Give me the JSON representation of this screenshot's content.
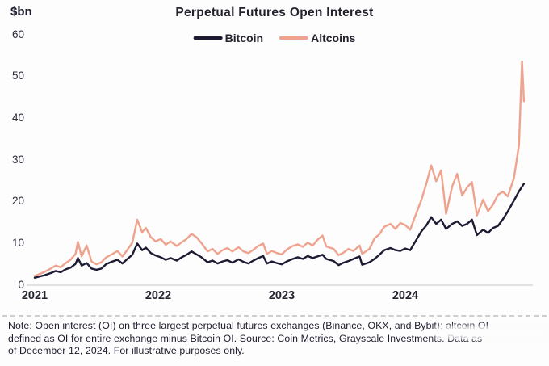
{
  "panel": {
    "background": "#fdfdfd"
  },
  "chart_data": {
    "type": "line",
    "title": "Perpetual Futures Open Interest",
    "unit_label": "$bn",
    "xlabel": "",
    "ylabel": "",
    "ylim": [
      0,
      60
    ],
    "yticks": [
      0,
      10,
      20,
      30,
      40,
      50,
      60
    ],
    "xticks": [
      "2021",
      "2022",
      "2023",
      "2024"
    ],
    "xlim": [
      2021.0,
      2024.96
    ],
    "grid": false,
    "legend_position": "top-center",
    "axis_line_color": "#d9d9d9",
    "series": [
      {
        "name": "Bitcoin",
        "color": "#1c1b33",
        "points": [
          [
            2021.0,
            1.7
          ],
          [
            2021.04,
            2.0
          ],
          [
            2021.08,
            2.3
          ],
          [
            2021.13,
            2.8
          ],
          [
            2021.17,
            3.3
          ],
          [
            2021.21,
            3.0
          ],
          [
            2021.25,
            3.7
          ],
          [
            2021.29,
            4.1
          ],
          [
            2021.33,
            5.0
          ],
          [
            2021.35,
            6.4
          ],
          [
            2021.38,
            4.6
          ],
          [
            2021.42,
            5.2
          ],
          [
            2021.46,
            3.9
          ],
          [
            2021.5,
            3.6
          ],
          [
            2021.54,
            3.9
          ],
          [
            2021.58,
            5.0
          ],
          [
            2021.63,
            5.6
          ],
          [
            2021.67,
            6.0
          ],
          [
            2021.71,
            5.1
          ],
          [
            2021.75,
            6.2
          ],
          [
            2021.79,
            7.2
          ],
          [
            2021.83,
            9.9
          ],
          [
            2021.87,
            8.3
          ],
          [
            2021.9,
            8.9
          ],
          [
            2021.94,
            7.6
          ],
          [
            2021.98,
            7.0
          ],
          [
            2022.02,
            6.6
          ],
          [
            2022.06,
            6.0
          ],
          [
            2022.1,
            6.4
          ],
          [
            2022.15,
            5.8
          ],
          [
            2022.19,
            6.6
          ],
          [
            2022.23,
            7.2
          ],
          [
            2022.27,
            8.0
          ],
          [
            2022.31,
            7.3
          ],
          [
            2022.35,
            6.6
          ],
          [
            2022.4,
            5.4
          ],
          [
            2022.44,
            5.8
          ],
          [
            2022.48,
            5.1
          ],
          [
            2022.52,
            5.6
          ],
          [
            2022.56,
            5.9
          ],
          [
            2022.6,
            5.3
          ],
          [
            2022.65,
            6.1
          ],
          [
            2022.69,
            5.5
          ],
          [
            2022.73,
            5.1
          ],
          [
            2022.77,
            5.8
          ],
          [
            2022.81,
            6.4
          ],
          [
            2022.85,
            6.9
          ],
          [
            2022.88,
            5.1
          ],
          [
            2022.92,
            5.6
          ],
          [
            2022.96,
            5.2
          ],
          [
            2023.0,
            4.9
          ],
          [
            2023.04,
            5.6
          ],
          [
            2023.08,
            6.1
          ],
          [
            2023.13,
            6.6
          ],
          [
            2023.17,
            6.2
          ],
          [
            2023.21,
            6.9
          ],
          [
            2023.25,
            6.4
          ],
          [
            2023.29,
            6.8
          ],
          [
            2023.33,
            7.2
          ],
          [
            2023.36,
            6.2
          ],
          [
            2023.42,
            5.7
          ],
          [
            2023.46,
            4.7
          ],
          [
            2023.5,
            5.3
          ],
          [
            2023.54,
            5.7
          ],
          [
            2023.58,
            6.2
          ],
          [
            2023.63,
            6.8
          ],
          [
            2023.65,
            4.8
          ],
          [
            2023.71,
            5.4
          ],
          [
            2023.75,
            6.2
          ],
          [
            2023.79,
            7.2
          ],
          [
            2023.83,
            8.3
          ],
          [
            2023.88,
            8.8
          ],
          [
            2023.92,
            8.3
          ],
          [
            2023.96,
            8.1
          ],
          [
            2024.0,
            8.7
          ],
          [
            2024.04,
            8.3
          ],
          [
            2024.08,
            10.3
          ],
          [
            2024.13,
            12.8
          ],
          [
            2024.17,
            14.2
          ],
          [
            2024.21,
            16.2
          ],
          [
            2024.25,
            14.6
          ],
          [
            2024.29,
            15.6
          ],
          [
            2024.33,
            13.4
          ],
          [
            2024.38,
            14.6
          ],
          [
            2024.42,
            15.2
          ],
          [
            2024.46,
            14.1
          ],
          [
            2024.5,
            14.6
          ],
          [
            2024.54,
            15.6
          ],
          [
            2024.58,
            11.9
          ],
          [
            2024.63,
            13.2
          ],
          [
            2024.67,
            12.4
          ],
          [
            2024.71,
            13.6
          ],
          [
            2024.75,
            14.1
          ],
          [
            2024.79,
            15.7
          ],
          [
            2024.83,
            17.6
          ],
          [
            2024.88,
            20.2
          ],
          [
            2024.92,
            22.4
          ],
          [
            2024.96,
            24.2
          ]
        ]
      },
      {
        "name": "Altcoins",
        "color": "#efa28e",
        "points": [
          [
            2021.0,
            2.1
          ],
          [
            2021.04,
            2.6
          ],
          [
            2021.08,
            3.1
          ],
          [
            2021.13,
            3.9
          ],
          [
            2021.17,
            4.6
          ],
          [
            2021.21,
            4.2
          ],
          [
            2021.25,
            5.2
          ],
          [
            2021.29,
            6.0
          ],
          [
            2021.33,
            7.4
          ],
          [
            2021.35,
            10.3
          ],
          [
            2021.38,
            6.8
          ],
          [
            2021.42,
            9.4
          ],
          [
            2021.46,
            5.6
          ],
          [
            2021.5,
            4.9
          ],
          [
            2021.54,
            5.4
          ],
          [
            2021.58,
            6.6
          ],
          [
            2021.63,
            7.4
          ],
          [
            2021.67,
            8.1
          ],
          [
            2021.71,
            6.8
          ],
          [
            2021.75,
            8.4
          ],
          [
            2021.79,
            10.1
          ],
          [
            2021.83,
            15.6
          ],
          [
            2021.87,
            12.6
          ],
          [
            2021.9,
            13.6
          ],
          [
            2021.94,
            11.4
          ],
          [
            2021.98,
            10.4
          ],
          [
            2022.02,
            11.0
          ],
          [
            2022.06,
            9.6
          ],
          [
            2022.1,
            10.4
          ],
          [
            2022.15,
            9.3
          ],
          [
            2022.19,
            10.2
          ],
          [
            2022.23,
            11.0
          ],
          [
            2022.27,
            12.2
          ],
          [
            2022.31,
            11.4
          ],
          [
            2022.35,
            10.0
          ],
          [
            2022.4,
            8.0
          ],
          [
            2022.44,
            8.6
          ],
          [
            2022.48,
            7.4
          ],
          [
            2022.52,
            8.3
          ],
          [
            2022.56,
            8.8
          ],
          [
            2022.6,
            8.0
          ],
          [
            2022.65,
            9.0
          ],
          [
            2022.69,
            8.0
          ],
          [
            2022.73,
            7.6
          ],
          [
            2022.77,
            8.4
          ],
          [
            2022.81,
            9.3
          ],
          [
            2022.85,
            9.9
          ],
          [
            2022.88,
            7.4
          ],
          [
            2022.92,
            8.1
          ],
          [
            2022.96,
            7.6
          ],
          [
            2023.0,
            7.3
          ],
          [
            2023.04,
            8.4
          ],
          [
            2023.08,
            9.2
          ],
          [
            2023.13,
            9.7
          ],
          [
            2023.17,
            9.1
          ],
          [
            2023.21,
            10.1
          ],
          [
            2023.25,
            9.4
          ],
          [
            2023.29,
            10.8
          ],
          [
            2023.33,
            11.8
          ],
          [
            2023.36,
            9.2
          ],
          [
            2023.42,
            8.6
          ],
          [
            2023.46,
            7.1
          ],
          [
            2023.5,
            7.7
          ],
          [
            2023.54,
            8.6
          ],
          [
            2023.58,
            8.1
          ],
          [
            2023.63,
            9.4
          ],
          [
            2023.65,
            7.4
          ],
          [
            2023.71,
            8.6
          ],
          [
            2023.75,
            11.1
          ],
          [
            2023.79,
            12.1
          ],
          [
            2023.83,
            13.9
          ],
          [
            2023.88,
            14.6
          ],
          [
            2023.92,
            13.4
          ],
          [
            2023.96,
            14.8
          ],
          [
            2024.0,
            14.3
          ],
          [
            2024.04,
            13.2
          ],
          [
            2024.08,
            16.4
          ],
          [
            2024.13,
            20.3
          ],
          [
            2024.17,
            24.2
          ],
          [
            2024.21,
            28.6
          ],
          [
            2024.25,
            24.8
          ],
          [
            2024.29,
            27.4
          ],
          [
            2024.33,
            17.0
          ],
          [
            2024.38,
            23.6
          ],
          [
            2024.42,
            26.6
          ],
          [
            2024.46,
            21.4
          ],
          [
            2024.5,
            23.3
          ],
          [
            2024.54,
            24.6
          ],
          [
            2024.58,
            16.6
          ],
          [
            2024.63,
            20.4
          ],
          [
            2024.67,
            17.6
          ],
          [
            2024.71,
            19.2
          ],
          [
            2024.75,
            21.6
          ],
          [
            2024.79,
            22.3
          ],
          [
            2024.83,
            21.2
          ],
          [
            2024.88,
            25.6
          ],
          [
            2024.92,
            33.5
          ],
          [
            2024.945,
            53.5
          ],
          [
            2024.96,
            44.0
          ]
        ]
      }
    ]
  },
  "note": {
    "lines": [
      "Note: Open interest (OI) on three largest perpetual futures exchanges (Binance, OKX, and Bybit); altcoin OI",
      "defined as OI for entire exchange minus Bitcoin OI. Source: Coin Metrics, Grayscale Investments. Data as",
      "of December 12, 2024. For illustrative purposes only."
    ]
  }
}
